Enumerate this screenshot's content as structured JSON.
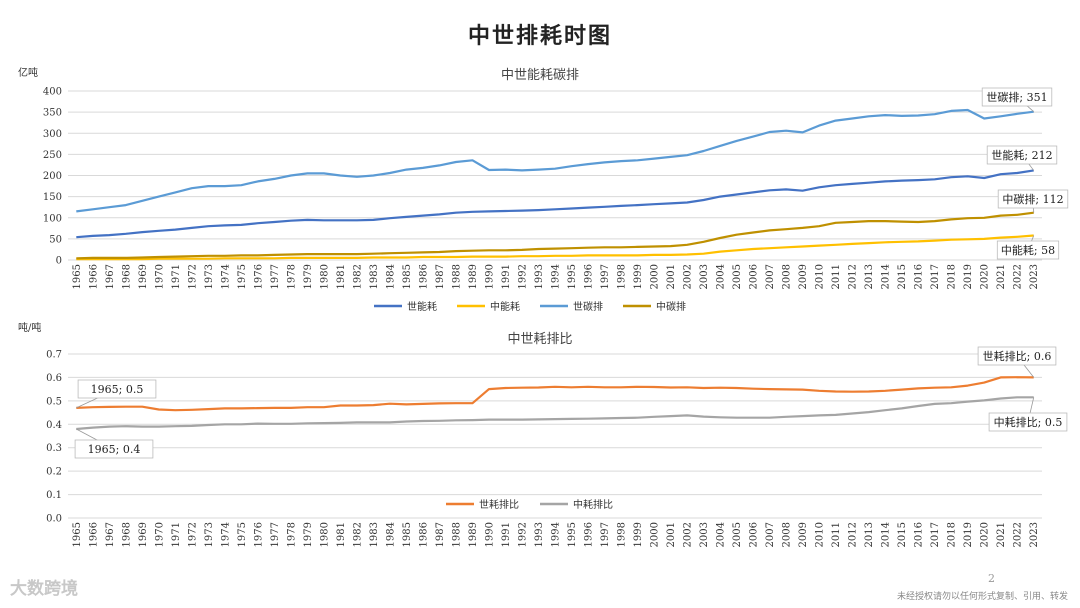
{
  "page": {
    "title": "中世排耗时图",
    "page_number": "2",
    "footer_note": "未经授权请勿以任何形式复制、引用、转发",
    "watermark": "大数跨境"
  },
  "colors": {
    "world_energy": "#4472C4",
    "china_energy": "#FFC000",
    "world_carbon": "#5B9BD5",
    "china_carbon": "#BF9000",
    "world_ratio": "#ED7D31",
    "china_ratio": "#A5A5A5",
    "grid": "#D9D9D9"
  },
  "chart_data": [
    {
      "type": "line",
      "title": "中世能耗碳排",
      "ylabel": "亿吨",
      "ylim": [
        0,
        400
      ],
      "yticks": [
        "0",
        "50",
        "100",
        "150",
        "200",
        "250",
        "300",
        "350",
        "400"
      ],
      "grid": true,
      "legend": "bottom",
      "x": [
        "1965",
        "1966",
        "1967",
        "1968",
        "1969",
        "1970",
        "1971",
        "1972",
        "1973",
        "1974",
        "1975",
        "1976",
        "1977",
        "1978",
        "1979",
        "1980",
        "1981",
        "1982",
        "1983",
        "1984",
        "1985",
        "1986",
        "1987",
        "1988",
        "1989",
        "1990",
        "1991",
        "1992",
        "1993",
        "1994",
        "1995",
        "1996",
        "1997",
        "1998",
        "1999",
        "2000",
        "2001",
        "2002",
        "2003",
        "2004",
        "2005",
        "2006",
        "2007",
        "2008",
        "2009",
        "2010",
        "2011",
        "2012",
        "2013",
        "2014",
        "2015",
        "2016",
        "2017",
        "2018",
        "2019",
        "2020",
        "2021",
        "2022",
        "2023"
      ],
      "series": [
        {
          "name": "世能耗",
          "color_key": "world_energy",
          "values": [
            54,
            57,
            59,
            62,
            66,
            69,
            72,
            76,
            80,
            82,
            83,
            87,
            90,
            93,
            95,
            94,
            94,
            94,
            95,
            99,
            102,
            105,
            108,
            112,
            114,
            115,
            116,
            117,
            118,
            120,
            122,
            124,
            126,
            128,
            130,
            132,
            134,
            136,
            142,
            150,
            155,
            160,
            165,
            167,
            164,
            172,
            177,
            180,
            183,
            186,
            188,
            189,
            191,
            196,
            198,
            194,
            203,
            206,
            212
          ]
        },
        {
          "name": "中能耗",
          "color_key": "china_energy",
          "values": [
            2,
            2,
            2,
            2,
            2,
            3,
            3,
            3,
            3,
            4,
            4,
            4,
            4,
            5,
            5,
            5,
            5,
            5,
            6,
            6,
            6,
            7,
            7,
            7,
            8,
            8,
            8,
            9,
            9,
            10,
            10,
            11,
            11,
            11,
            11,
            12,
            12,
            13,
            15,
            20,
            23,
            26,
            28,
            30,
            32,
            34,
            36,
            38,
            40,
            42,
            43,
            44,
            46,
            48,
            49,
            50,
            53,
            55,
            58
          ]
        },
        {
          "name": "世碳排",
          "color_key": "world_carbon",
          "values": [
            115,
            120,
            125,
            130,
            140,
            150,
            160,
            170,
            175,
            175,
            177,
            186,
            192,
            200,
            205,
            205,
            200,
            197,
            200,
            206,
            214,
            218,
            224,
            232,
            236,
            213,
            214,
            212,
            214,
            216,
            222,
            227,
            231,
            234,
            236,
            240,
            244,
            248,
            258,
            270,
            282,
            292,
            303,
            306,
            302,
            318,
            330,
            335,
            340,
            343,
            341,
            342,
            345,
            353,
            355,
            335,
            340,
            346,
            351
          ]
        },
        {
          "name": "中碳排",
          "color_key": "china_carbon",
          "values": [
            4,
            5,
            5,
            5,
            6,
            7,
            8,
            9,
            10,
            10,
            11,
            11,
            12,
            13,
            14,
            14,
            14,
            14,
            15,
            16,
            17,
            18,
            19,
            21,
            22,
            23,
            23,
            24,
            26,
            27,
            28,
            29,
            30,
            30,
            31,
            32,
            33,
            36,
            43,
            52,
            60,
            65,
            70,
            73,
            76,
            80,
            88,
            90,
            92,
            92,
            91,
            90,
            92,
            96,
            99,
            100,
            105,
            107,
            112
          ]
        }
      ],
      "end_labels": [
        "世碳排; 351",
        "世能耗; 212",
        "中碳排; 112",
        "中能耗; 58"
      ]
    },
    {
      "type": "line",
      "title": "中世耗排比",
      "ylabel": "吨/吨",
      "ylim": [
        0,
        0.7
      ],
      "yticks": [
        "0.0",
        "0.1",
        "0.2",
        "0.3",
        "0.4",
        "0.5",
        "0.6",
        "0.7"
      ],
      "grid": true,
      "legend": "inside-bottom",
      "x": [
        "1965",
        "1966",
        "1967",
        "1968",
        "1969",
        "1970",
        "1971",
        "1972",
        "1973",
        "1974",
        "1975",
        "1976",
        "1977",
        "1978",
        "1979",
        "1980",
        "1981",
        "1982",
        "1983",
        "1984",
        "1985",
        "1986",
        "1987",
        "1988",
        "1989",
        "1990",
        "1991",
        "1992",
        "1993",
        "1994",
        "1995",
        "1996",
        "1997",
        "1998",
        "1999",
        "2000",
        "2001",
        "2002",
        "2003",
        "2004",
        "2005",
        "2006",
        "2007",
        "2008",
        "2009",
        "2010",
        "2011",
        "2012",
        "2013",
        "2014",
        "2015",
        "2016",
        "2017",
        "2018",
        "2019",
        "2020",
        "2021",
        "2022",
        "2023"
      ],
      "series": [
        {
          "name": "世耗排比",
          "color_key": "world_ratio",
          "values": [
            0.47,
            0.473,
            0.474,
            0.475,
            0.475,
            0.463,
            0.46,
            0.462,
            0.465,
            0.468,
            0.468,
            0.469,
            0.47,
            0.47,
            0.473,
            0.473,
            0.48,
            0.48,
            0.482,
            0.488,
            0.485,
            0.487,
            0.489,
            0.49,
            0.49,
            0.55,
            0.555,
            0.556,
            0.557,
            0.56,
            0.558,
            0.56,
            0.558,
            0.558,
            0.56,
            0.559,
            0.557,
            0.558,
            0.555,
            0.556,
            0.555,
            0.552,
            0.55,
            0.549,
            0.548,
            0.543,
            0.54,
            0.539,
            0.54,
            0.543,
            0.548,
            0.553,
            0.556,
            0.558,
            0.565,
            0.578,
            0.6,
            0.601,
            0.6
          ]
        },
        {
          "name": "中耗排比",
          "color_key": "china_ratio",
          "values": [
            0.38,
            0.386,
            0.39,
            0.392,
            0.39,
            0.39,
            0.392,
            0.393,
            0.397,
            0.4,
            0.4,
            0.403,
            0.402,
            0.402,
            0.404,
            0.405,
            0.406,
            0.408,
            0.408,
            0.408,
            0.412,
            0.414,
            0.415,
            0.417,
            0.418,
            0.42,
            0.42,
            0.42,
            0.421,
            0.422,
            0.423,
            0.424,
            0.425,
            0.427,
            0.428,
            0.432,
            0.435,
            0.438,
            0.433,
            0.43,
            0.428,
            0.428,
            0.428,
            0.432,
            0.435,
            0.438,
            0.44,
            0.446,
            0.452,
            0.46,
            0.468,
            0.478,
            0.487,
            0.49,
            0.497,
            0.502,
            0.51,
            0.515,
            0.515
          ]
        }
      ],
      "start_labels": [
        "1965; 0.5",
        "1965; 0.4"
      ],
      "end_labels": [
        "世耗排比; 0.6",
        "中耗排比; 0.5"
      ]
    }
  ]
}
